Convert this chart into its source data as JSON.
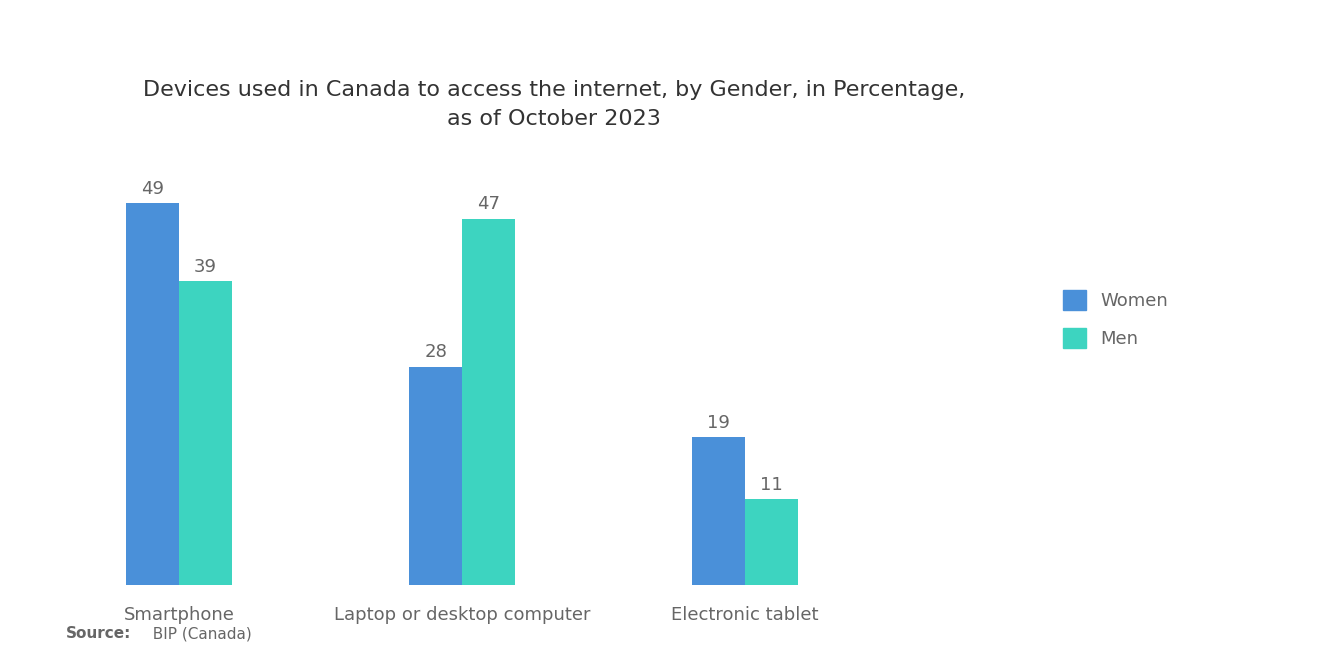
{
  "title": "Devices used in Canada to access the internet, by Gender, in Percentage,\nas of October 2023",
  "categories": [
    "Smartphone",
    "Laptop or desktop computer",
    "Electronic tablet"
  ],
  "women_values": [
    49,
    28,
    19
  ],
  "men_values": [
    39,
    47,
    11
  ],
  "women_color": "#4a90d9",
  "men_color": "#3dd4c0",
  "background_color": "#ffffff",
  "title_fontsize": 16,
  "label_fontsize": 13,
  "value_fontsize": 13,
  "source_bold": "Source:",
  "source_rest": "  BIP (Canada)",
  "legend_labels": [
    "Women",
    "Men"
  ],
  "bar_width": 0.28,
  "group_positions": [
    0.5,
    2.0,
    3.5
  ],
  "ylim": [
    0,
    58
  ],
  "xlim": [
    -0.1,
    4.8
  ]
}
